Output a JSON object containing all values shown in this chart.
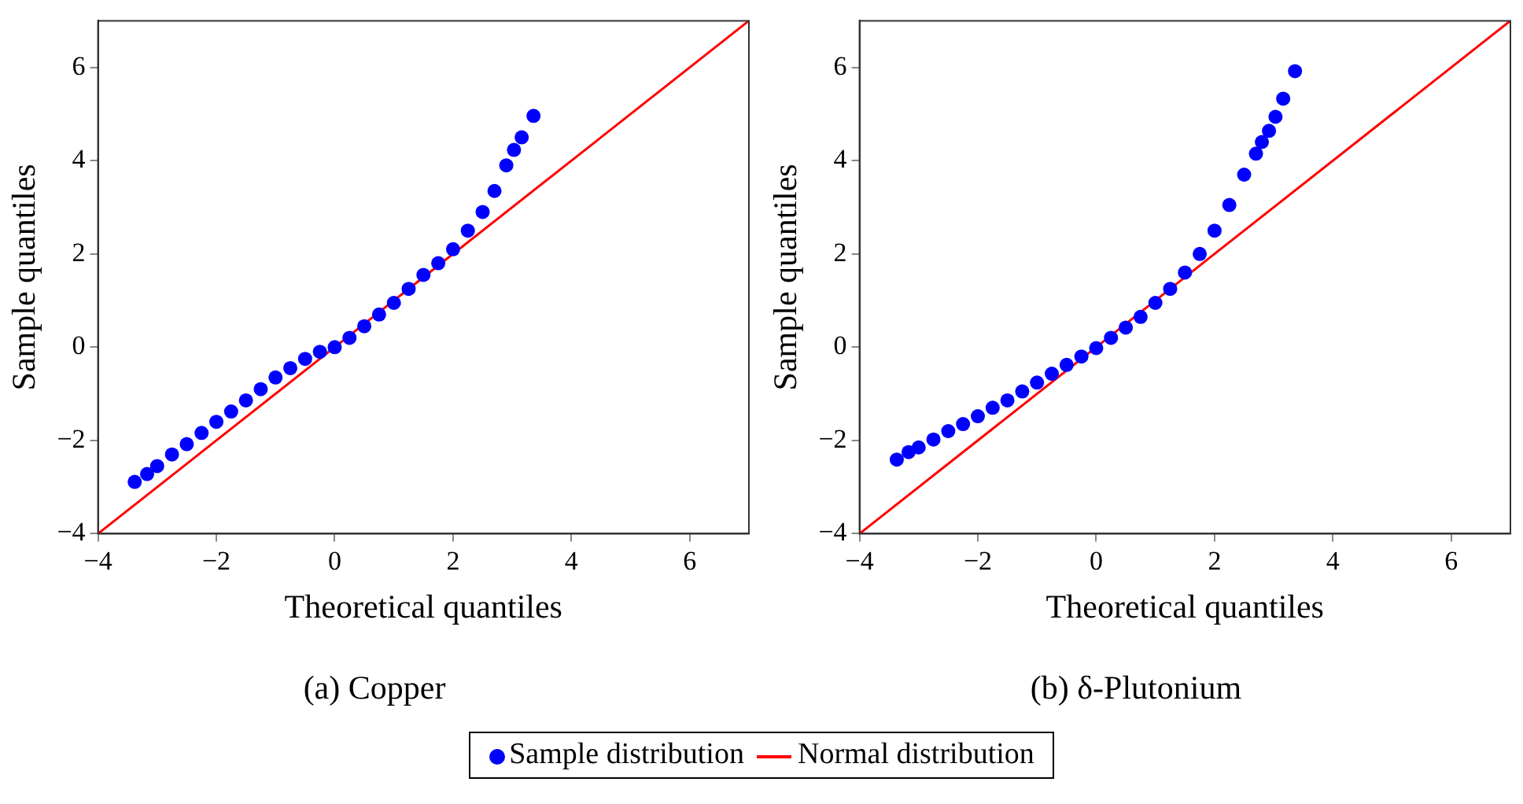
{
  "chart_data": [
    {
      "type": "scatter",
      "title": "(a) Copper",
      "xlabel": "Theoretical quantiles",
      "ylabel": "Sample quantiles",
      "xlim": [
        -4,
        7
      ],
      "ylim": [
        -4,
        7
      ],
      "xticks": [
        -4,
        -2,
        0,
        2,
        4,
        6
      ],
      "yticks": [
        -4,
        -2,
        0,
        2,
        4,
        6
      ],
      "grid": false,
      "legend": "bottom",
      "series": [
        {
          "name": "Sample distribution",
          "color": "#0000ff",
          "marker": "circle",
          "x": [
            -3.38,
            -3.17,
            -3.0,
            -2.75,
            -2.5,
            -2.25,
            -2,
            -1.75,
            -1.5,
            -1.25,
            -1,
            -0.75,
            -0.5,
            -0.25,
            0,
            0.25,
            0.5,
            0.75,
            1,
            1.25,
            1.5,
            1.75,
            2,
            2.25,
            2.5,
            2.7,
            2.9,
            3.03,
            3.16,
            3.36
          ],
          "values": [
            -2.89,
            -2.72,
            -2.55,
            -2.3,
            -2.08,
            -1.84,
            -1.6,
            -1.38,
            -1.14,
            -0.9,
            -0.65,
            -0.45,
            -0.25,
            -0.1,
            0,
            0.2,
            0.45,
            0.7,
            0.95,
            1.25,
            1.55,
            1.8,
            2.1,
            2.5,
            2.9,
            3.35,
            3.9,
            4.23,
            4.5,
            4.96
          ]
        },
        {
          "name": "Normal distribution",
          "type": "line",
          "color": "#ff0000",
          "marker": "none",
          "line_style": "solid",
          "x": [
            -4,
            7
          ],
          "values": [
            -4,
            7
          ]
        }
      ]
    },
    {
      "type": "scatter",
      "title": "(b) δ-Plutonium",
      "xlabel": "Theoretical quantiles",
      "ylabel": "Sample quantiles",
      "xlim": [
        -4,
        7
      ],
      "ylim": [
        -4,
        7
      ],
      "xticks": [
        -4,
        -2,
        0,
        2,
        4,
        6
      ],
      "yticks": [
        -4,
        -2,
        0,
        2,
        4,
        6
      ],
      "grid": false,
      "series": [
        {
          "color": "#0000ff",
          "marker": "circle",
          "x": [
            -3.37,
            -3.17,
            -3,
            -2.75,
            -2.5,
            -2.25,
            -2,
            -1.75,
            -1.5,
            -1.25,
            -1,
            -0.75,
            -0.5,
            -0.25,
            0,
            0.25,
            0.5,
            0.75,
            1,
            1.25,
            1.5,
            1.75,
            2,
            2.25,
            2.5,
            2.7,
            2.8,
            2.92,
            3.03,
            3.16,
            3.36
          ],
          "values": [
            -2.41,
            -2.25,
            -2.15,
            -1.98,
            -1.8,
            -1.65,
            -1.48,
            -1.3,
            -1.14,
            -0.95,
            -0.76,
            -0.57,
            -0.38,
            -0.2,
            -0.02,
            0.2,
            0.42,
            0.65,
            0.95,
            1.25,
            1.6,
            2.0,
            2.5,
            3.05,
            3.7,
            4.15,
            4.4,
            4.64,
            4.94,
            5.33,
            5.92
          ]
        },
        {
          "type": "line",
          "color": "#ff0000",
          "marker": "none",
          "line_style": "solid",
          "x": [
            -4,
            7
          ],
          "values": [
            -4,
            7
          ]
        }
      ]
    }
  ]
}
